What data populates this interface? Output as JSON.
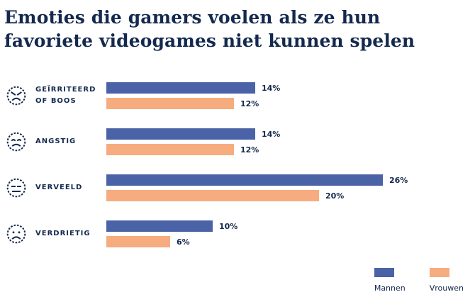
{
  "title": {
    "line1": "Emoties die gamers voelen als ze hun",
    "line2": "favoriete videogames niet kunnen spelen"
  },
  "chart_data": {
    "type": "bar",
    "orientation": "horizontal",
    "title": "Emoties die gamers voelen als ze hun favoriete videogames niet kunnen spelen",
    "categories": [
      "Geïrriteerd of boos",
      "Angstig",
      "Verveeld",
      "Verdrietig"
    ],
    "series": [
      {
        "name": "Mannen",
        "color": "#4a63a6",
        "values": [
          14,
          14,
          26,
          10
        ]
      },
      {
        "name": "Vrouwen",
        "color": "#f6ac7e",
        "values": [
          12,
          12,
          20,
          6
        ]
      }
    ],
    "value_suffix": "%",
    "xlim": [
      0,
      30
    ],
    "grid": false,
    "legend_position": "bottom-right"
  },
  "rows": [
    {
      "icon": "angry-face-icon",
      "label1": "GEÏRRITEERD",
      "label2": "OF BOOS",
      "mannen_label": "14%",
      "vrouwen_label": "12%"
    },
    {
      "icon": "anxious-face-icon",
      "label1": "ANGSTIG",
      "label2": "",
      "mannen_label": "14%",
      "vrouwen_label": "12%"
    },
    {
      "icon": "bored-face-icon",
      "label1": "VERVEELD",
      "label2": "",
      "mannen_label": "26%",
      "vrouwen_label": "20%"
    },
    {
      "icon": "sad-face-icon",
      "label1": "VERDRIETIG",
      "label2": "",
      "mannen_label": "10%",
      "vrouwen_label": "6%"
    }
  ],
  "legend": {
    "mannen": "Mannen",
    "vrouwen": "Vrouwen"
  },
  "colors": {
    "navy": "#14294e",
    "blue": "#4a63a6",
    "orange": "#f6ac7e",
    "background": "#ffffff"
  }
}
